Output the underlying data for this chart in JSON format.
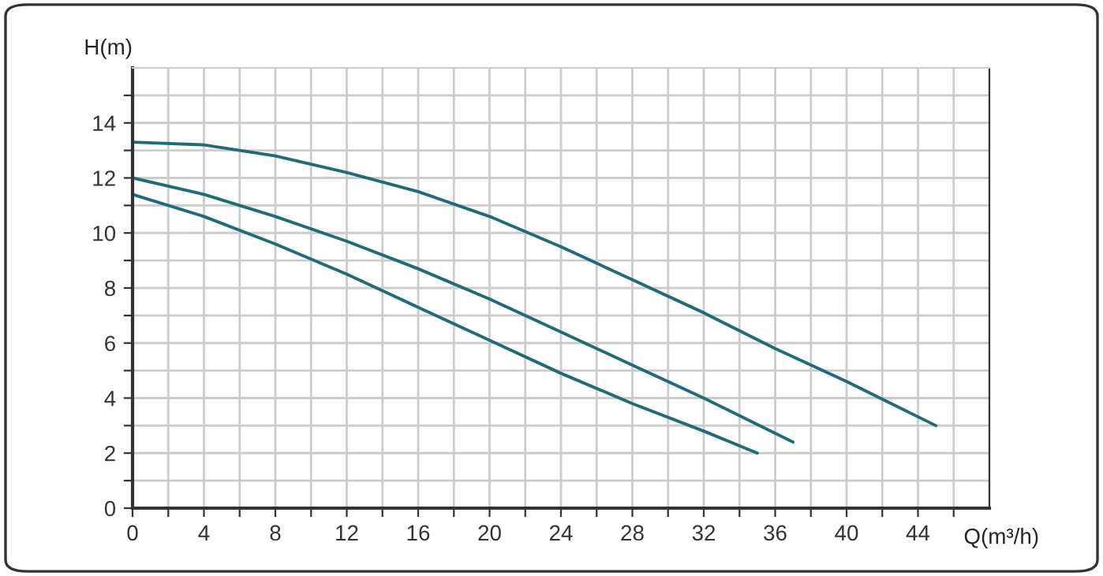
{
  "chart_data": {
    "type": "line",
    "xlabel": "Q(m³/h)",
    "ylabel": "H(m)",
    "xlim": [
      0,
      48
    ],
    "ylim": [
      0,
      16
    ],
    "xticks": [
      0,
      {
        "value": 2,
        "label": null
      },
      4,
      {
        "value": 6,
        "label": null
      },
      8,
      {
        "value": 10,
        "label": null
      },
      12,
      {
        "value": 14,
        "label": null
      },
      16,
      {
        "value": 18,
        "label": null
      },
      20,
      {
        "value": 22,
        "label": null
      },
      24,
      {
        "value": 26,
        "label": null
      },
      28,
      {
        "value": 30,
        "label": null
      },
      32,
      {
        "value": 34,
        "label": null
      },
      36,
      {
        "value": 38,
        "label": null
      },
      40,
      {
        "value": 42,
        "label": null
      },
      44,
      {
        "value": 46,
        "label": null
      }
    ],
    "yticks": [
      0,
      {
        "value": 1,
        "label": null
      },
      2,
      {
        "value": 3,
        "label": null
      },
      4,
      {
        "value": 5,
        "label": null
      },
      6,
      {
        "value": 7,
        "label": null
      },
      8,
      {
        "value": 9,
        "label": null
      },
      10,
      {
        "value": 11,
        "label": null
      },
      12,
      {
        "value": 13,
        "label": null
      },
      14,
      {
        "value": 15,
        "label": null
      }
    ],
    "grid": true,
    "marker": "none",
    "line_style": "solid",
    "series": [
      {
        "color": "#1f6b7a",
        "x": [
          0,
          4,
          8,
          12,
          16,
          20,
          24,
          28,
          32,
          36,
          40,
          45
        ],
        "values": [
          13.3,
          13.2,
          12.8,
          12.2,
          11.5,
          10.6,
          9.5,
          8.3,
          7.1,
          5.8,
          4.6,
          3.0
        ]
      },
      {
        "color": "#1f6b7a",
        "x": [
          0,
          4,
          8,
          12,
          16,
          20,
          24,
          28,
          32,
          37
        ],
        "values": [
          12.0,
          11.4,
          10.6,
          9.7,
          8.7,
          7.6,
          6.4,
          5.2,
          4.0,
          2.4
        ]
      },
      {
        "color": "#1f6b7a",
        "x": [
          0,
          4,
          8,
          12,
          16,
          20,
          24,
          28,
          32,
          35
        ],
        "values": [
          11.4,
          10.6,
          9.6,
          8.5,
          7.3,
          6.1,
          4.9,
          3.8,
          2.8,
          2.0
        ]
      }
    ]
  }
}
